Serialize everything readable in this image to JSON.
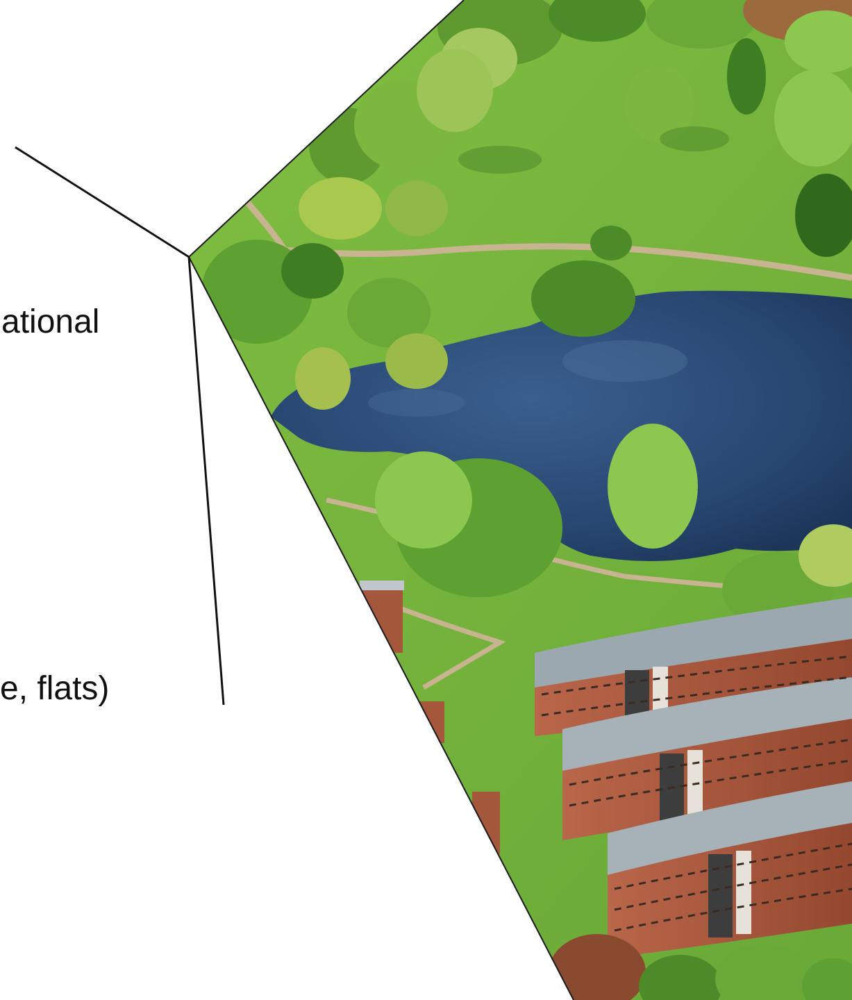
{
  "slide": {
    "text_lines": [
      "ational",
      "e, flats)"
    ],
    "photo_description_icon": "campus-aerial-photo"
  },
  "colors": {
    "grass": "#78b83c",
    "lake": "#2c4d78",
    "brick": "#a4573a",
    "roof": "#9ca8b0",
    "tree_dark": "#3f7d22",
    "tree_light": "#8cc850",
    "path": "#c8b490",
    "callout_line": "#111111"
  }
}
